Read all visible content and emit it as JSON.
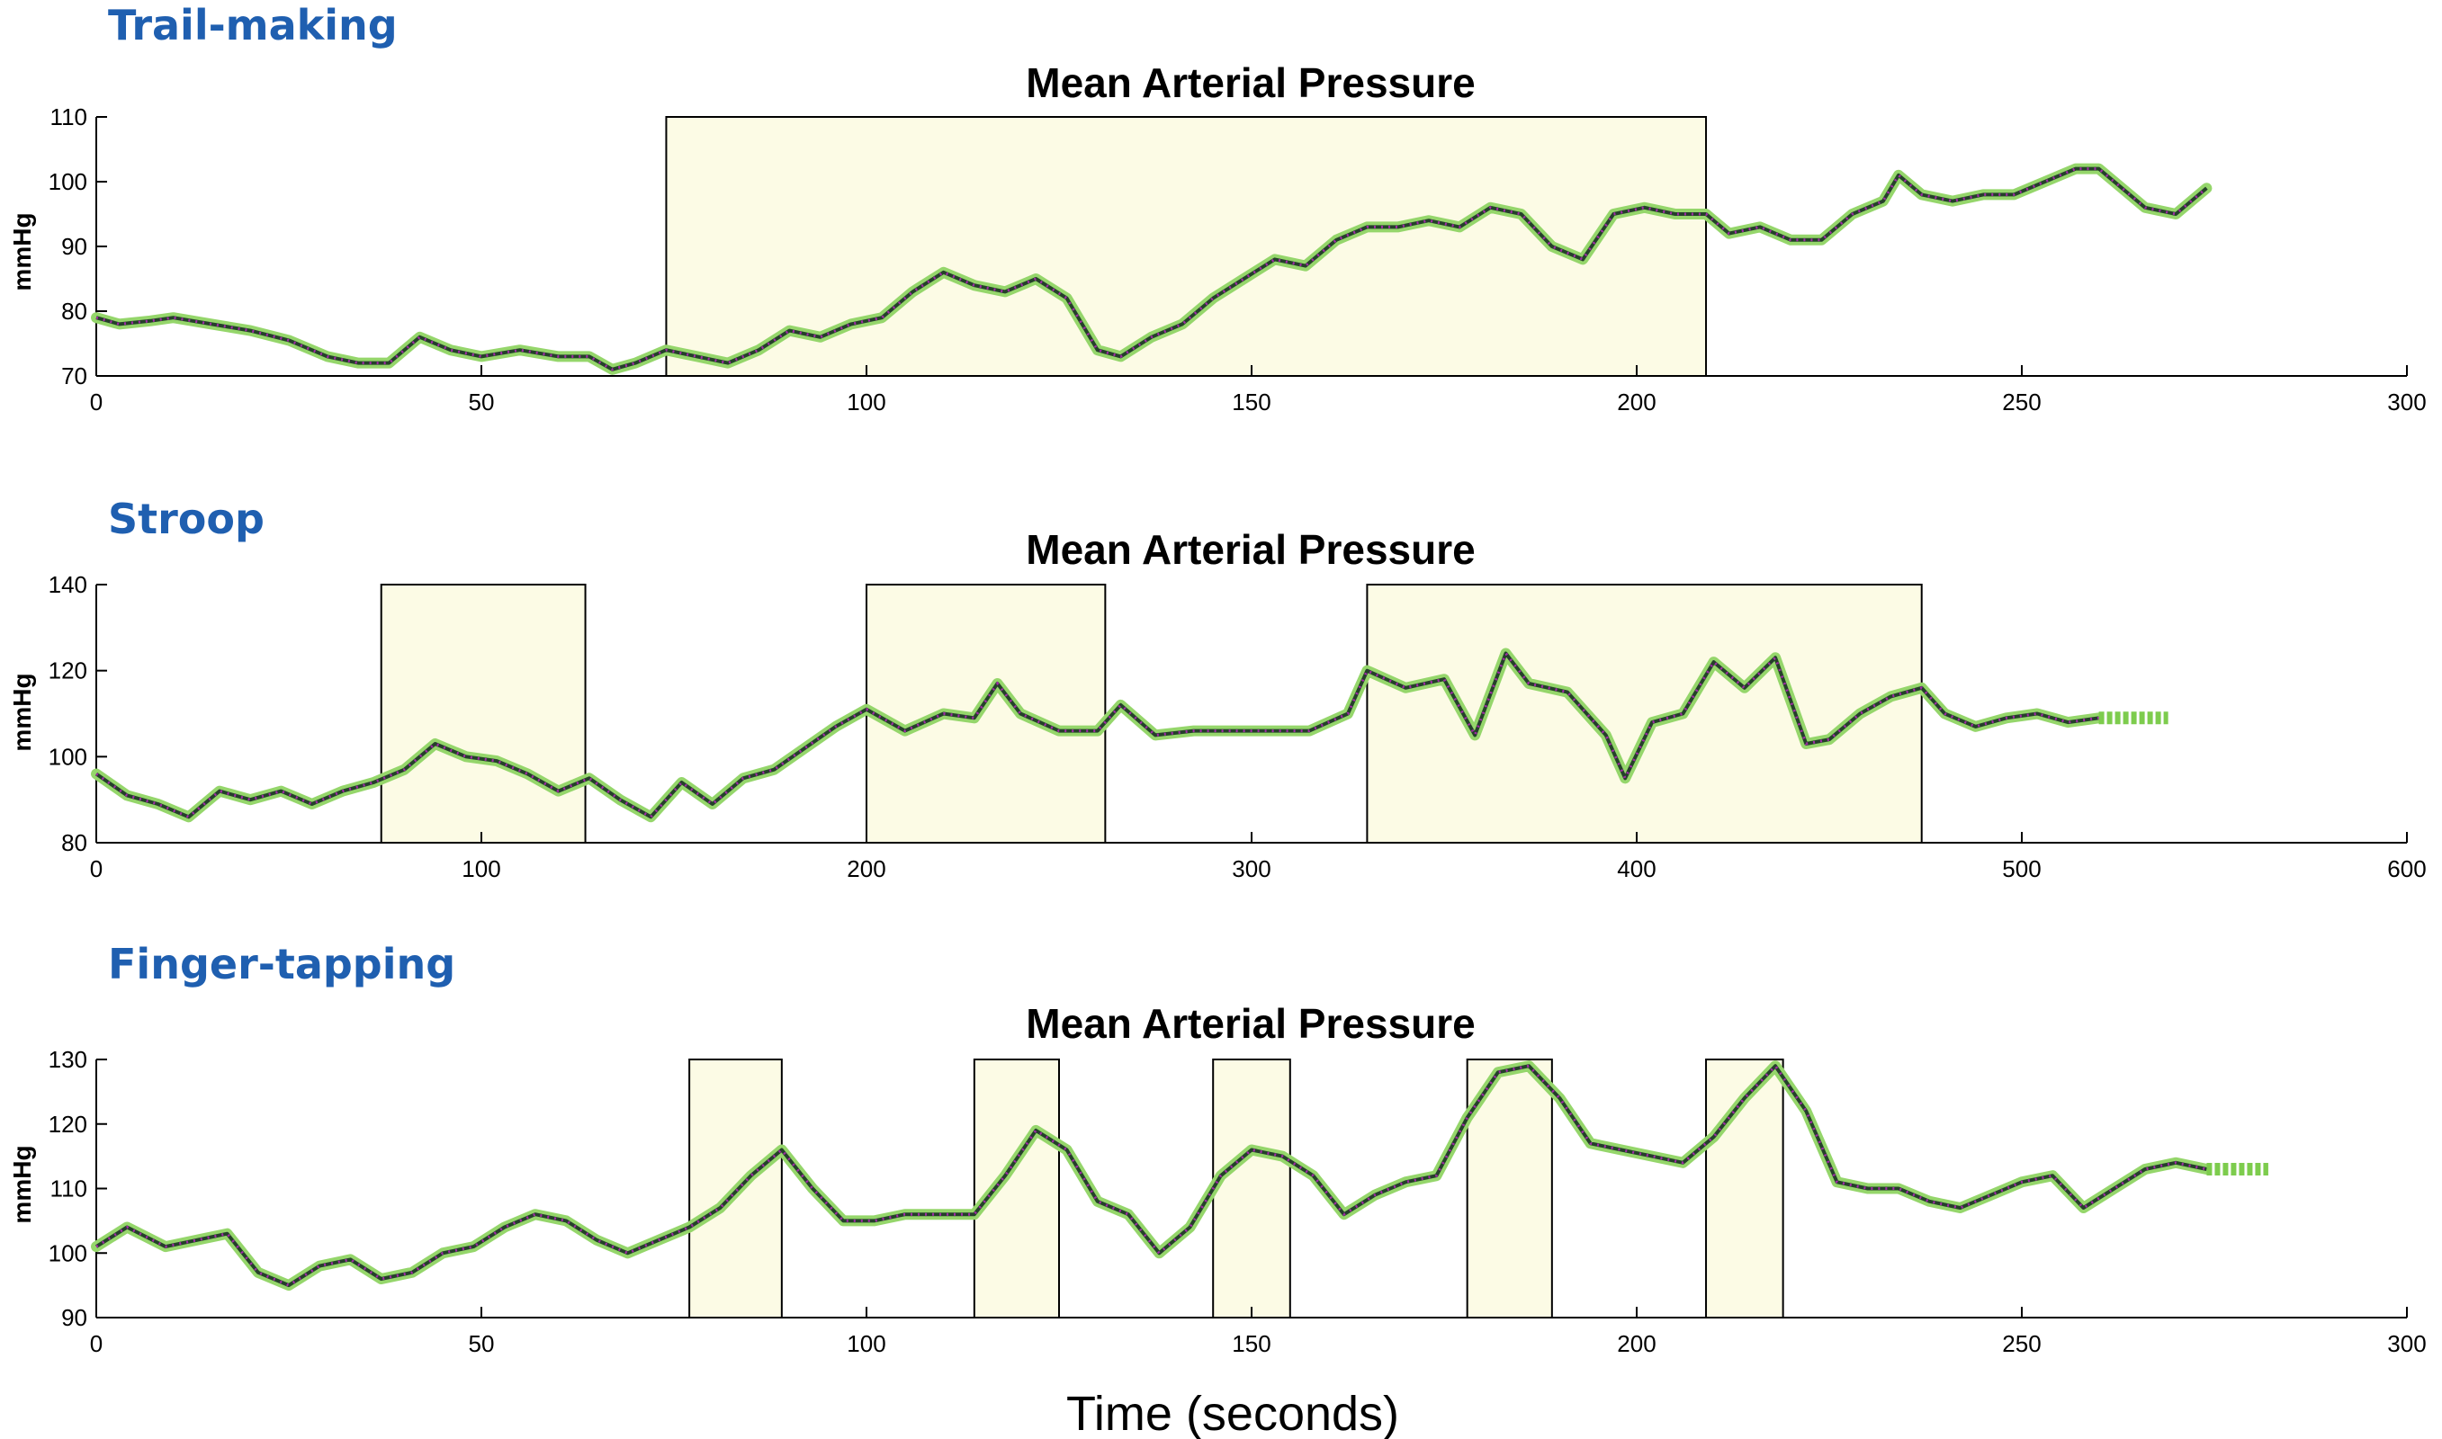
{
  "xlabel": "Time (seconds)",
  "colors": {
    "panel_label": "#1f5fb0",
    "trace": "#95d66b",
    "trace_core": "#25402a",
    "markers": "#a02ca6",
    "task_box": "#fcfbe5"
  },
  "chart_data": [
    {
      "type": "line",
      "panel_label": "Trail-making",
      "title": "Mean Arterial Pressure",
      "ylabel": "mmHg",
      "xlim": [
        0,
        300
      ],
      "ylim": [
        70,
        110
      ],
      "xticks": [
        0,
        50,
        100,
        150,
        200,
        250,
        300
      ],
      "yticks": [
        70,
        80,
        90,
        100,
        110
      ],
      "grid": false,
      "task_intervals": [
        [
          74,
          209
        ]
      ],
      "series": [
        {
          "x": [
            0,
            3,
            7,
            10,
            15,
            20,
            25,
            30,
            34,
            38,
            42,
            46,
            50,
            55,
            60,
            64,
            67,
            70,
            74,
            78,
            82,
            86,
            90,
            94,
            98,
            102,
            106,
            110,
            114,
            118,
            122,
            126,
            130,
            133,
            137,
            141,
            145,
            149,
            153,
            157,
            161,
            165,
            169,
            173,
            177,
            181,
            185,
            189,
            193,
            197,
            201,
            205,
            209,
            212,
            216,
            220,
            224,
            228,
            232,
            234,
            237,
            241,
            245,
            249,
            253,
            257,
            260,
            263,
            266,
            270,
            274
          ],
          "y": [
            79,
            78,
            78.5,
            79,
            78,
            77,
            75.5,
            73,
            72,
            72,
            76,
            74,
            73,
            74,
            73,
            73,
            71,
            72,
            74,
            73,
            72,
            74,
            77,
            76,
            78,
            79,
            83,
            86,
            84,
            83,
            85,
            82,
            74,
            73,
            76,
            78,
            82,
            85,
            88,
            87,
            91,
            93,
            93,
            94,
            93,
            96,
            95,
            90,
            88,
            95,
            96,
            95,
            95,
            92,
            93,
            91,
            91,
            95,
            97,
            101,
            98,
            97,
            98,
            98,
            100,
            102,
            102,
            99,
            96,
            95,
            99
          ]
        }
      ],
      "flat_tail": null
    },
    {
      "type": "line",
      "panel_label": "Stroop",
      "title": "Mean Arterial Pressure",
      "ylabel": "mmHg",
      "xlim": [
        0,
        600
      ],
      "ylim": [
        80,
        140
      ],
      "xticks": [
        0,
        100,
        200,
        300,
        400,
        500,
        600
      ],
      "yticks": [
        80,
        100,
        120,
        140
      ],
      "grid": false,
      "task_intervals": [
        [
          74,
          127
        ],
        [
          200,
          262
        ],
        [
          330,
          474
        ]
      ],
      "series": [
        {
          "x": [
            0,
            8,
            16,
            24,
            32,
            40,
            48,
            56,
            64,
            72,
            80,
            88,
            96,
            104,
            112,
            120,
            128,
            136,
            144,
            152,
            160,
            168,
            176,
            184,
            192,
            200,
            210,
            220,
            228,
            234,
            240,
            250,
            260,
            266,
            275,
            285,
            300,
            315,
            325,
            330,
            340,
            350,
            358,
            366,
            372,
            382,
            392,
            397,
            404,
            412,
            420,
            428,
            436,
            444,
            450,
            458,
            466,
            474,
            480,
            488,
            496,
            504,
            512,
            520
          ],
          "y": [
            96,
            91,
            89,
            86,
            92,
            90,
            92,
            89,
            92,
            94,
            97,
            103,
            100,
            99,
            96,
            92,
            95,
            90,
            86,
            94,
            89,
            95,
            97,
            102,
            107,
            111,
            106,
            110,
            109,
            117,
            110,
            106,
            106,
            112,
            105,
            106,
            106,
            106,
            110,
            120,
            116,
            118,
            105,
            124,
            117,
            115,
            105,
            95,
            108,
            110,
            122,
            116,
            123,
            103,
            104,
            110,
            114,
            116,
            110,
            107,
            109,
            110,
            108,
            109
          ]
        }
      ],
      "flat_tail": {
        "x": [
          520,
          538
        ],
        "y": 109
      }
    },
    {
      "type": "line",
      "panel_label": "Finger-tapping",
      "title": "Mean Arterial Pressure",
      "ylabel": "mmHg",
      "xlim": [
        0,
        300
      ],
      "ylim": [
        90,
        130
      ],
      "xticks": [
        0,
        50,
        100,
        150,
        200,
        250,
        300
      ],
      "yticks": [
        90,
        100,
        110,
        120,
        130
      ],
      "grid": false,
      "task_intervals": [
        [
          77,
          89
        ],
        [
          114,
          125
        ],
        [
          145,
          155
        ],
        [
          178,
          189
        ],
        [
          209,
          219
        ]
      ],
      "series": [
        {
          "x": [
            0,
            4,
            9,
            13,
            17,
            21,
            25,
            29,
            33,
            37,
            41,
            45,
            49,
            53,
            57,
            61,
            65,
            69,
            73,
            77,
            81,
            85,
            89,
            93,
            97,
            101,
            105,
            109,
            114,
            118,
            122,
            126,
            130,
            134,
            138,
            142,
            146,
            150,
            154,
            158,
            162,
            166,
            170,
            174,
            178,
            182,
            186,
            190,
            194,
            198,
            202,
            206,
            210,
            214,
            218,
            222,
            226,
            230,
            234,
            238,
            242,
            246,
            250,
            254,
            258,
            262,
            266,
            270,
            274
          ],
          "y": [
            101,
            104,
            101,
            102,
            103,
            97,
            95,
            98,
            99,
            96,
            97,
            100,
            101,
            104,
            106,
            105,
            102,
            100,
            102,
            104,
            107,
            112,
            116,
            110,
            105,
            105,
            106,
            106,
            106,
            112,
            119,
            116,
            108,
            106,
            100,
            104,
            112,
            116,
            115,
            112,
            106,
            109,
            111,
            112,
            121,
            128,
            129,
            124,
            117,
            116,
            115,
            114,
            118,
            124,
            129,
            122,
            111,
            110,
            110,
            108,
            107,
            109,
            111,
            112,
            107,
            110,
            113,
            114,
            113
          ]
        }
      ],
      "flat_tail": {
        "x": [
          274,
          282
        ],
        "y": 113
      }
    }
  ]
}
